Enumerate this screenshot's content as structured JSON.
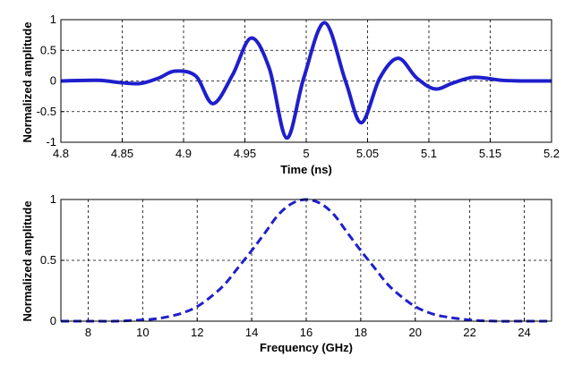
{
  "chart_data": [
    {
      "type": "line",
      "xlabel": "Time (ns)",
      "ylabel": "Normalized amplitude",
      "xlim": [
        4.8,
        5.2
      ],
      "ylim": [
        -1,
        1
      ],
      "xticks": [
        "4.8",
        "4.85",
        "4.9",
        "4.95",
        "5",
        "5.05",
        "5.1",
        "5.15",
        "5.2"
      ],
      "yticks": [
        "-1",
        "-0.5",
        "0",
        "0.5",
        "1"
      ],
      "grid": true,
      "line_style": "solid",
      "color": "#1f1fcc",
      "series": [
        {
          "x": [
            4.8,
            4.83,
            4.85,
            4.865,
            4.88,
            4.893,
            4.91,
            4.924,
            4.94,
            4.955,
            4.97,
            4.984,
            4.998,
            5.015,
            5.032,
            5.045,
            5.06,
            5.075,
            5.09,
            5.105,
            5.12,
            5.137,
            5.16,
            5.18,
            5.2
          ],
          "y": [
            0.0,
            0.01,
            -0.03,
            -0.04,
            0.05,
            0.16,
            0.08,
            -0.37,
            0.1,
            0.7,
            0.2,
            -0.93,
            0.05,
            0.95,
            0.0,
            -0.68,
            0.05,
            0.37,
            0.05,
            -0.13,
            -0.03,
            0.06,
            0.01,
            0.0,
            0.0
          ]
        }
      ]
    },
    {
      "type": "line",
      "xlabel": "Frequency (GHz)",
      "ylabel": "Normalized amplitude",
      "xlim": [
        7,
        25
      ],
      "ylim": [
        0,
        1
      ],
      "xticks": [
        "8",
        "10",
        "12",
        "14",
        "16",
        "18",
        "20",
        "22",
        "24"
      ],
      "yticks": [
        "0",
        "0.5",
        "1"
      ],
      "grid": true,
      "line_style": "dashed",
      "color": "#1f1fcc",
      "series": [
        {
          "x": [
            7,
            8,
            9,
            10,
            10.5,
            11,
            11.5,
            12,
            12.5,
            13,
            13.5,
            14,
            14.5,
            15,
            15.5,
            16,
            16.5,
            17,
            17.5,
            18,
            18.5,
            19,
            19.5,
            20,
            20.5,
            21,
            22,
            23,
            24,
            25
          ],
          "y": [
            0.0,
            0.0,
            0.0,
            0.01,
            0.02,
            0.04,
            0.07,
            0.12,
            0.2,
            0.3,
            0.44,
            0.58,
            0.73,
            0.88,
            0.97,
            1.0,
            0.97,
            0.88,
            0.73,
            0.58,
            0.44,
            0.3,
            0.2,
            0.12,
            0.07,
            0.04,
            0.01,
            0.0,
            0.0,
            0.0
          ]
        }
      ]
    }
  ]
}
